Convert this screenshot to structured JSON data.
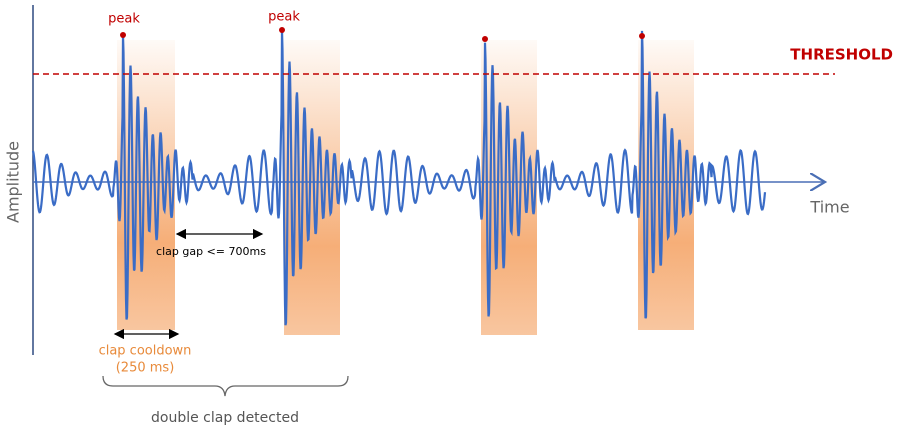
{
  "labels": {
    "peaks": [
      "peak",
      "peak"
    ],
    "threshold": "THRESHOLD",
    "y_axis": "Amplitude",
    "x_axis": "Time",
    "clap_gap": "clap gap <= 700ms",
    "cooldown": [
      "clap cooldown",
      "(250 ms)"
    ],
    "double_clap": "double clap detected"
  }
}
